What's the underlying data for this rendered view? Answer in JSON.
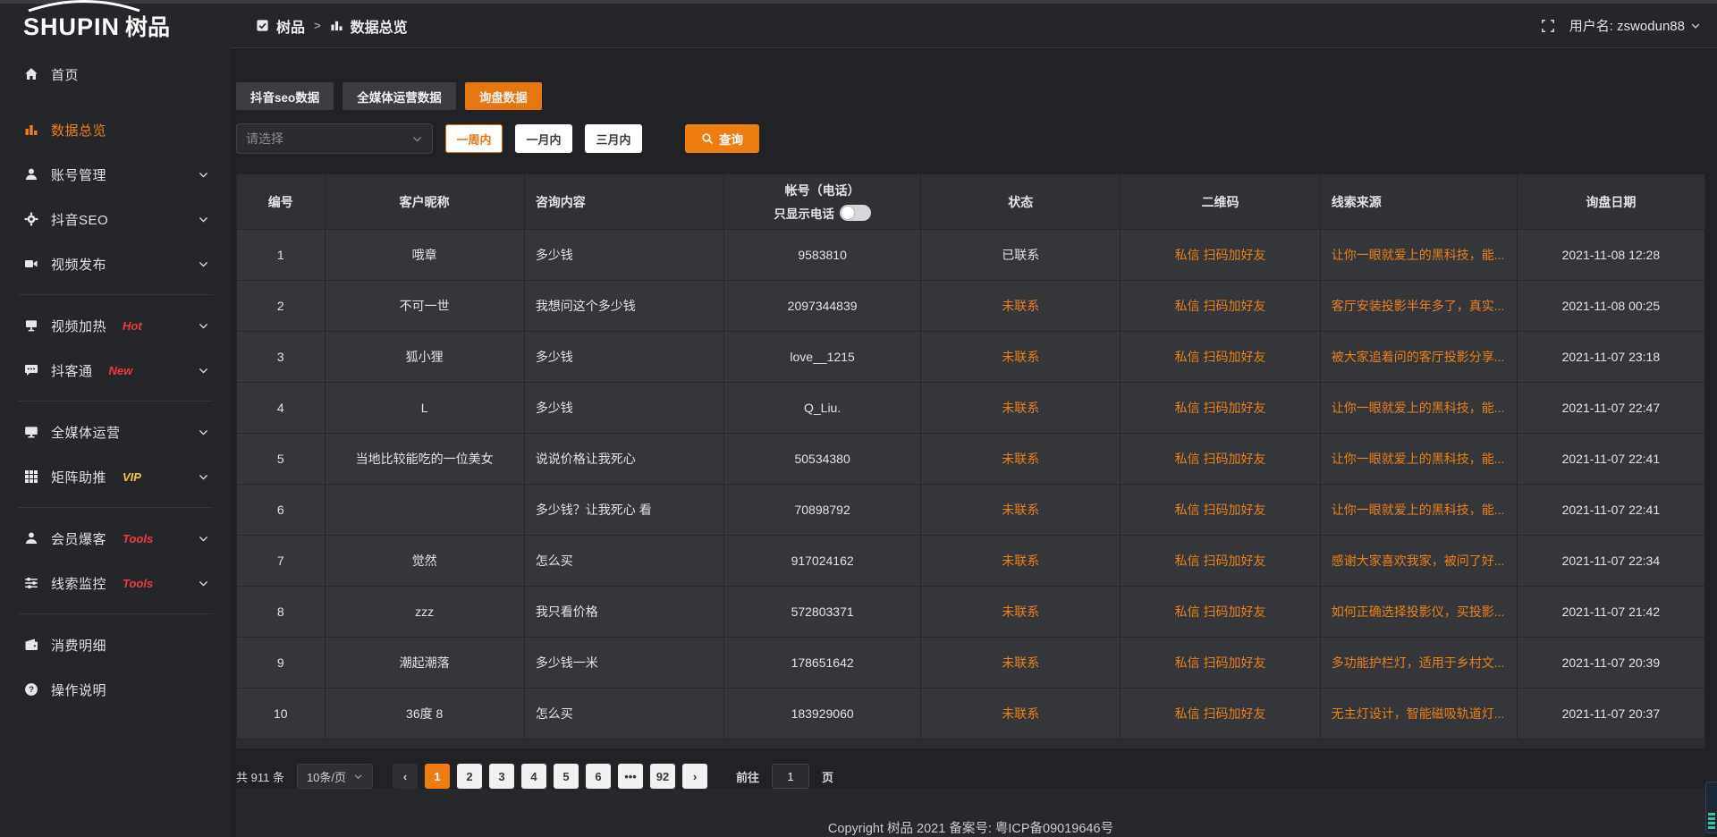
{
  "accent": "#e67610",
  "orange_text": "#e8821f",
  "header": {
    "logo_latin": "SHUPIN",
    "logo_cn": "树品",
    "breadcrumb_app": "树品",
    "breadcrumb_sep": ">",
    "breadcrumb_page": "数据总览",
    "fullscreen_icon": "fullscreen-icon",
    "username_label": "用户名: zswodun88"
  },
  "sidebar": {
    "items": [
      {
        "label": "首页",
        "icon": "home-icon",
        "active": false,
        "chevron": false,
        "badge": "",
        "badge_color": "",
        "divider_after": false
      },
      {
        "label": "数据总览",
        "icon": "chart-icon",
        "active": true,
        "chevron": false,
        "badge": "",
        "badge_color": "",
        "divider_after": false
      },
      {
        "label": "账号管理",
        "icon": "user-icon",
        "active": false,
        "chevron": true,
        "badge": "",
        "badge_color": "",
        "divider_after": false
      },
      {
        "label": "抖音SEO",
        "icon": "gear-icon",
        "active": false,
        "chevron": true,
        "badge": "",
        "badge_color": "",
        "divider_after": false
      },
      {
        "label": "视频发布",
        "icon": "video-icon",
        "active": false,
        "chevron": true,
        "badge": "",
        "badge_color": "",
        "divider_after": true
      },
      {
        "label": "视频加热",
        "icon": "screen-icon",
        "active": false,
        "chevron": true,
        "badge": "Hot",
        "badge_color": "#f0383e",
        "divider_after": false
      },
      {
        "label": "抖客通",
        "icon": "chat-icon",
        "active": false,
        "chevron": true,
        "badge": "New",
        "badge_color": "#f0383e",
        "divider_after": true
      },
      {
        "label": "全媒体运营",
        "icon": "monitor-icon",
        "active": false,
        "chevron": true,
        "badge": "",
        "badge_color": "",
        "divider_after": false
      },
      {
        "label": "矩阵助推",
        "icon": "grid-icon",
        "active": false,
        "chevron": true,
        "badge": "VIP",
        "badge_color": "#f6c343",
        "divider_after": true
      },
      {
        "label": "会员爆客",
        "icon": "member-icon",
        "active": false,
        "chevron": true,
        "badge": "Tools",
        "badge_color": "#f0383e",
        "divider_after": false
      },
      {
        "label": "线索监控",
        "icon": "sliders-icon",
        "active": false,
        "chevron": true,
        "badge": "Tools",
        "badge_color": "#f0383e",
        "divider_after": true
      },
      {
        "label": "消费明细",
        "icon": "wallet-icon",
        "active": false,
        "chevron": false,
        "badge": "",
        "badge_color": "",
        "divider_after": false
      },
      {
        "label": "操作说明",
        "icon": "question-icon",
        "active": false,
        "chevron": false,
        "badge": "",
        "badge_color": "",
        "divider_after": false
      }
    ]
  },
  "tabs": [
    {
      "label": "抖音seo数据",
      "active": false
    },
    {
      "label": "全媒体运营数据",
      "active": false
    },
    {
      "label": "询盘数据",
      "active": true
    }
  ],
  "filter": {
    "select_placeholder": "请选择",
    "range_buttons": [
      {
        "label": "一周内",
        "active": true
      },
      {
        "label": "一月内",
        "active": false
      },
      {
        "label": "三月内",
        "active": false
      }
    ],
    "search_button": "查询"
  },
  "table": {
    "columns": [
      "编号",
      "客户昵称",
      "咨询内容",
      "帐号（电话）",
      "状态",
      "二维码",
      "线索来源",
      "询盘日期"
    ],
    "phone_toggle_label": "只显示电话",
    "rows": [
      {
        "no": "1",
        "nickname": "哦章",
        "content": "多少钱",
        "account": "9583810",
        "status": "已联系",
        "status_type": "contacted",
        "qr": "私信 扫码加好友",
        "source": "让你一眼就爱上的黑科技，能...",
        "date": "2021-11-08 12:28"
      },
      {
        "no": "2",
        "nickname": "不可一世",
        "content": "我想问这个多少钱",
        "account": "2097344839",
        "status": "未联系",
        "status_type": "pending",
        "qr": "私信 扫码加好友",
        "source": "客厅安装投影半年多了，真实...",
        "date": "2021-11-08 00:25"
      },
      {
        "no": "3",
        "nickname": "狐小狸",
        "content": "多少钱",
        "account": "love__1215",
        "status": "未联系",
        "status_type": "pending",
        "qr": "私信 扫码加好友",
        "source": "被大家追着问的客厅投影分享...",
        "date": "2021-11-07 23:18"
      },
      {
        "no": "4",
        "nickname": "L",
        "content": "多少钱",
        "account": "Q_Liu.",
        "status": "未联系",
        "status_type": "pending",
        "qr": "私信 扫码加好友",
        "source": "让你一眼就爱上的黑科技，能...",
        "date": "2021-11-07 22:47"
      },
      {
        "no": "5",
        "nickname": "当地比较能吃的一位美女",
        "content": "说说价格让我死心",
        "account": "50534380",
        "status": "未联系",
        "status_type": "pending",
        "qr": "私信 扫码加好友",
        "source": "让你一眼就爱上的黑科技，能...",
        "date": "2021-11-07 22:41"
      },
      {
        "no": "6",
        "nickname": "",
        "content": "多少钱？让我死心 看",
        "account": "70898792",
        "status": "未联系",
        "status_type": "pending",
        "qr": "私信 扫码加好友",
        "source": "让你一眼就爱上的黑科技，能...",
        "date": "2021-11-07 22:41"
      },
      {
        "no": "7",
        "nickname": "觉然",
        "content": "怎么买",
        "account": "917024162",
        "status": "未联系",
        "status_type": "pending",
        "qr": "私信 扫码加好友",
        "source": "感谢大家喜欢我家，被问了好...",
        "date": "2021-11-07 22:34"
      },
      {
        "no": "8",
        "nickname": "zzz",
        "content": "我只看价格",
        "account": "572803371",
        "status": "未联系",
        "status_type": "pending",
        "qr": "私信 扫码加好友",
        "source": "如何正确选择投影仪，买投影...",
        "date": "2021-11-07 21:42"
      },
      {
        "no": "9",
        "nickname": "潮起潮落",
        "content": "多少钱一米",
        "account": "178651642",
        "status": "未联系",
        "status_type": "pending",
        "qr": "私信 扫码加好友",
        "source": "多功能护栏灯，适用于乡村文...",
        "date": "2021-11-07 20:39"
      },
      {
        "no": "10",
        "nickname": "36度 8",
        "content": "怎么买",
        "account": "183929060",
        "status": "未联系",
        "status_type": "pending",
        "qr": "私信 扫码加好友",
        "source": "无主灯设计，智能磁吸轨道灯...",
        "date": "2021-11-07 20:37"
      }
    ]
  },
  "pagination": {
    "total_label": "共 911 条",
    "page_size": "10条/页",
    "prev_label": "‹",
    "next_label": "›",
    "pages": [
      "1",
      "2",
      "3",
      "4",
      "5",
      "6",
      "•••",
      "92"
    ],
    "active_page": "1",
    "jump_prefix": "前往",
    "jump_value": "1",
    "jump_suffix": "页"
  },
  "footer": {
    "text": "Copyright 树品 2021 备案号: 粤ICP备09019646号"
  }
}
